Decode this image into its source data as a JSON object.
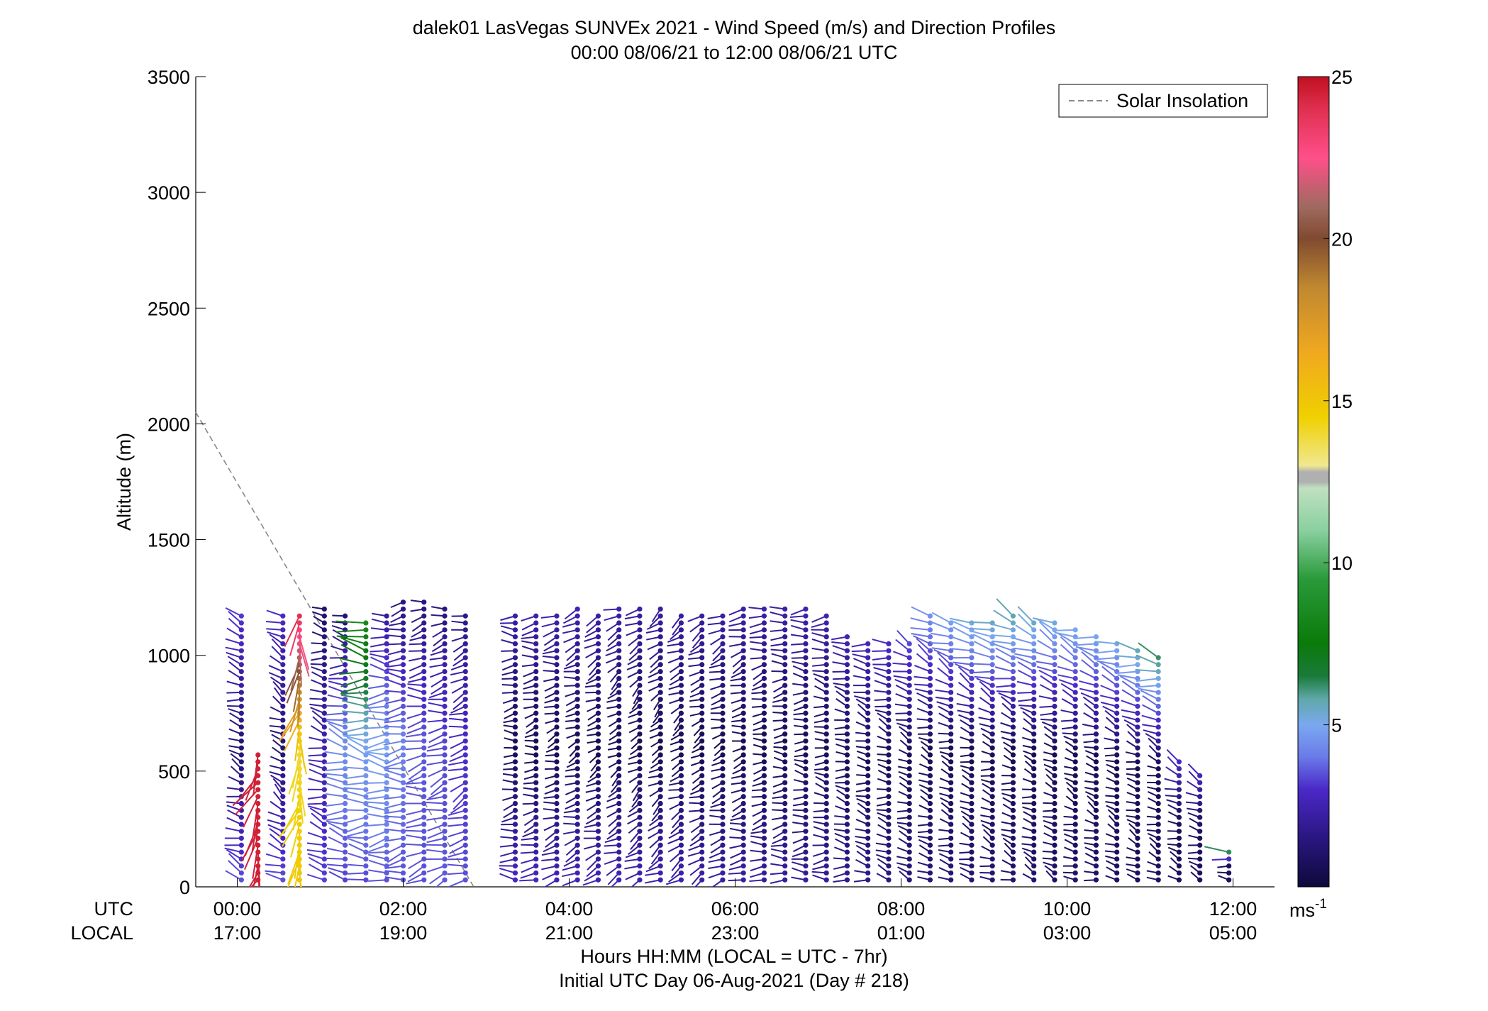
{
  "chart_data": {
    "type": "wind-profile",
    "title_line1": "dalek01 LasVegas SUNVEx 2021 - Wind Speed (m/s) and Direction Profiles",
    "title_line2": "00:00 08/06/21 to 12:00 08/06/21  UTC",
    "ylabel": "Altitude (m)",
    "ylim": [
      0,
      3500
    ],
    "y_ticks": [
      0,
      500,
      1000,
      1500,
      2000,
      2500,
      3000,
      3500
    ],
    "xlim_hours": [
      -0.5,
      12.5
    ],
    "x_tick_hours": [
      0,
      2,
      4,
      6,
      8,
      10,
      12
    ],
    "x_ticks_utc": [
      "00:00",
      "02:00",
      "04:00",
      "06:00",
      "08:00",
      "10:00",
      "12:00"
    ],
    "x_ticks_local": [
      "17:00",
      "19:00",
      "21:00",
      "23:00",
      "01:00",
      "03:00",
      "05:00"
    ],
    "row_label_utc": "UTC",
    "row_label_local": "LOCAL",
    "xlabel_line1": "Hours HH:MM  (LOCAL = UTC - 7hr)",
    "xlabel_line2": "Initial UTC Day 06-Aug-2021 (Day # 218)",
    "legend": {
      "label": "Solar Insolation",
      "placement": "top-right",
      "style": "dashed",
      "color": "#888888"
    },
    "colorbar": {
      "min": 0,
      "max": 25,
      "ticks": [
        5,
        10,
        15,
        20,
        25
      ],
      "unit_base": "ms",
      "unit_exp": "-1",
      "stops": [
        [
          0,
          "#0d0a3a"
        ],
        [
          1.5,
          "#2a1680"
        ],
        [
          3,
          "#4a28c8"
        ],
        [
          4,
          "#6a7ae8"
        ],
        [
          5,
          "#7aa8f0"
        ],
        [
          5.8,
          "#5fa8a8"
        ],
        [
          6.5,
          "#1a7a3a"
        ],
        [
          7.5,
          "#0a7a0a"
        ],
        [
          9.5,
          "#2a9a3a"
        ],
        [
          11,
          "#8ad0a0"
        ],
        [
          12.3,
          "#c0e0c0"
        ],
        [
          12.5,
          "#b0b0b0"
        ],
        [
          12.8,
          "#b0b0b0"
        ],
        [
          13,
          "#f0e890"
        ],
        [
          14.5,
          "#f0d000"
        ],
        [
          16.5,
          "#f0a820"
        ],
        [
          18.5,
          "#c08830"
        ],
        [
          20,
          "#804a30"
        ],
        [
          21,
          "#a06a60"
        ],
        [
          22.5,
          "#ff4f8a"
        ],
        [
          24,
          "#e03050"
        ],
        [
          25,
          "#c01020"
        ]
      ]
    },
    "solar_insolation_line": [
      [
        -0.5,
        2050
      ],
      [
        2.85,
        0
      ]
    ],
    "profiles": [
      {
        "t": 0.05,
        "top": 1170,
        "low_speed": 3.5,
        "mid_speed": 1.2,
        "up_speed": 3.2,
        "dir": 290
      },
      {
        "t": 0.25,
        "top": 580,
        "low_speed": 24.5,
        "mid_speed": 24.5,
        "up_speed": 24.5,
        "dir": 200
      },
      {
        "t": 0.55,
        "top": 1170,
        "low_speed": 3.5,
        "mid_speed": 1.2,
        "up_speed": 3.0,
        "dir": 300
      },
      {
        "t": 0.75,
        "top": 1170,
        "low_speed": 15,
        "mid_speed": 14,
        "up_speed": 24,
        "dir": 190
      },
      {
        "t": 1.05,
        "top": 1210,
        "low_speed": 3.3,
        "mid_speed": 2.5,
        "up_speed": 1.0,
        "dir": 285
      },
      {
        "t": 1.3,
        "top": 1180,
        "low_speed": 3.3,
        "mid_speed": 4.5,
        "up_speed": 1.2,
        "dir": 280
      },
      {
        "t": 1.55,
        "top": 1160,
        "low_speed": 3.4,
        "mid_speed": 4.8,
        "up_speed": 8.5,
        "dir": 275
      },
      {
        "t": 1.8,
        "top": 1190,
        "low_speed": 3.5,
        "mid_speed": 5.0,
        "up_speed": 2.0,
        "dir": 270
      },
      {
        "t": 2.0,
        "top": 1230,
        "low_speed": 3.5,
        "mid_speed": 4.2,
        "up_speed": 1.5,
        "dir": 265
      },
      {
        "t": 2.25,
        "top": 1250,
        "low_speed": 3.5,
        "mid_speed": 3.6,
        "up_speed": 1.4,
        "dir": 260
      },
      {
        "t": 2.5,
        "top": 1200,
        "low_speed": 3.6,
        "mid_speed": 3.4,
        "up_speed": 1.5,
        "dir": 255
      },
      {
        "t": 2.75,
        "top": 1190,
        "low_speed": 3.5,
        "mid_speed": 3.0,
        "up_speed": 1.6,
        "dir": 250
      },
      {
        "t": 3.35,
        "top": 1180,
        "low_speed": 2.8,
        "mid_speed": 0.6,
        "up_speed": 2.3,
        "dir": 265
      },
      {
        "t": 3.6,
        "top": 1170,
        "low_speed": 2.8,
        "mid_speed": 0.5,
        "up_speed": 2.4,
        "dir": 260
      },
      {
        "t": 3.85,
        "top": 1190,
        "low_speed": 2.6,
        "mid_speed": 0.5,
        "up_speed": 2.5,
        "dir": 255
      },
      {
        "t": 4.1,
        "top": 1200,
        "low_speed": 2.6,
        "mid_speed": 0.6,
        "up_speed": 2.5,
        "dir": 250
      },
      {
        "t": 4.35,
        "top": 1190,
        "low_speed": 2.6,
        "mid_speed": 0.5,
        "up_speed": 2.4,
        "dir": 245
      },
      {
        "t": 4.6,
        "top": 1200,
        "low_speed": 2.6,
        "mid_speed": 0.5,
        "up_speed": 2.4,
        "dir": 240
      },
      {
        "t": 4.85,
        "top": 1220,
        "low_speed": 2.5,
        "mid_speed": 0.6,
        "up_speed": 2.3,
        "dir": 235
      },
      {
        "t": 5.1,
        "top": 1200,
        "low_speed": 2.5,
        "mid_speed": 0.5,
        "up_speed": 2.2,
        "dir": 235
      },
      {
        "t": 5.35,
        "top": 1190,
        "low_speed": 2.4,
        "mid_speed": 0.6,
        "up_speed": 2.2,
        "dir": 240
      },
      {
        "t": 5.6,
        "top": 1180,
        "low_speed": 2.3,
        "mid_speed": 0.5,
        "up_speed": 2.2,
        "dir": 245
      },
      {
        "t": 5.85,
        "top": 1190,
        "low_speed": 2.2,
        "mid_speed": 0.5,
        "up_speed": 2.3,
        "dir": 250
      },
      {
        "t": 6.1,
        "top": 1200,
        "low_speed": 2.2,
        "mid_speed": 0.6,
        "up_speed": 2.3,
        "dir": 255
      },
      {
        "t": 6.35,
        "top": 1210,
        "low_speed": 2.1,
        "mid_speed": 0.5,
        "up_speed": 2.4,
        "dir": 260
      },
      {
        "t": 6.6,
        "top": 1220,
        "low_speed": 2.1,
        "mid_speed": 0.6,
        "up_speed": 2.4,
        "dir": 265
      },
      {
        "t": 6.85,
        "top": 1200,
        "low_speed": 2.0,
        "mid_speed": 0.6,
        "up_speed": 2.5,
        "dir": 270
      },
      {
        "t": 7.1,
        "top": 1180,
        "low_speed": 2.0,
        "mid_speed": 0.7,
        "up_speed": 2.5,
        "dir": 275
      },
      {
        "t": 7.35,
        "top": 1100,
        "low_speed": 1.8,
        "mid_speed": 0.7,
        "up_speed": 2.6,
        "dir": 280
      },
      {
        "t": 7.6,
        "top": 1060,
        "low_speed": 1.7,
        "mid_speed": 0.6,
        "up_speed": 2.8,
        "dir": 285
      },
      {
        "t": 7.85,
        "top": 1060,
        "low_speed": 1.5,
        "mid_speed": 0.6,
        "up_speed": 3.0,
        "dir": 285
      },
      {
        "t": 8.1,
        "top": 1070,
        "low_speed": 1.4,
        "mid_speed": 0.6,
        "up_speed": 3.5,
        "dir": 290
      },
      {
        "t": 8.35,
        "top": 1170,
        "low_speed": 1.3,
        "mid_speed": 0.6,
        "up_speed": 4.5,
        "dir": 290
      },
      {
        "t": 8.6,
        "top": 1140,
        "low_speed": 1.3,
        "mid_speed": 0.6,
        "up_speed": 4.8,
        "dir": 290
      },
      {
        "t": 8.85,
        "top": 1140,
        "low_speed": 1.2,
        "mid_speed": 0.6,
        "up_speed": 5.2,
        "dir": 290
      },
      {
        "t": 9.1,
        "top": 1150,
        "low_speed": 1.2,
        "mid_speed": 0.6,
        "up_speed": 5.6,
        "dir": 290
      },
      {
        "t": 9.35,
        "top": 1170,
        "low_speed": 1.1,
        "mid_speed": 0.6,
        "up_speed": 5.8,
        "dir": 290
      },
      {
        "t": 9.6,
        "top": 1160,
        "low_speed": 1.1,
        "mid_speed": 0.6,
        "up_speed": 5.6,
        "dir": 290
      },
      {
        "t": 9.85,
        "top": 1140,
        "low_speed": 1.0,
        "mid_speed": 0.6,
        "up_speed": 5.2,
        "dir": 290
      },
      {
        "t": 10.1,
        "top": 1110,
        "low_speed": 1.0,
        "mid_speed": 0.6,
        "up_speed": 5.0,
        "dir": 290
      },
      {
        "t": 10.35,
        "top": 1090,
        "low_speed": 1.0,
        "mid_speed": 0.6,
        "up_speed": 5.0,
        "dir": 290
      },
      {
        "t": 10.6,
        "top": 1060,
        "low_speed": 0.9,
        "mid_speed": 0.6,
        "up_speed": 5.2,
        "dir": 290
      },
      {
        "t": 10.85,
        "top": 1040,
        "low_speed": 0.8,
        "mid_speed": 0.6,
        "up_speed": 5.8,
        "dir": 290
      },
      {
        "t": 11.1,
        "top": 990,
        "low_speed": 0.8,
        "mid_speed": 0.6,
        "up_speed": 6.2,
        "dir": 290
      },
      {
        "t": 11.35,
        "top": 540,
        "low_speed": 0.8,
        "mid_speed": 0.7,
        "up_speed": 3.0,
        "dir": 290
      },
      {
        "t": 11.6,
        "top": 490,
        "low_speed": 0.8,
        "mid_speed": 0.8,
        "up_speed": 2.8,
        "dir": 290
      },
      {
        "t": 11.95,
        "top": 170,
        "low_speed": 0.7,
        "mid_speed": 0.7,
        "up_speed": 8.5,
        "dir": 290
      }
    ]
  }
}
